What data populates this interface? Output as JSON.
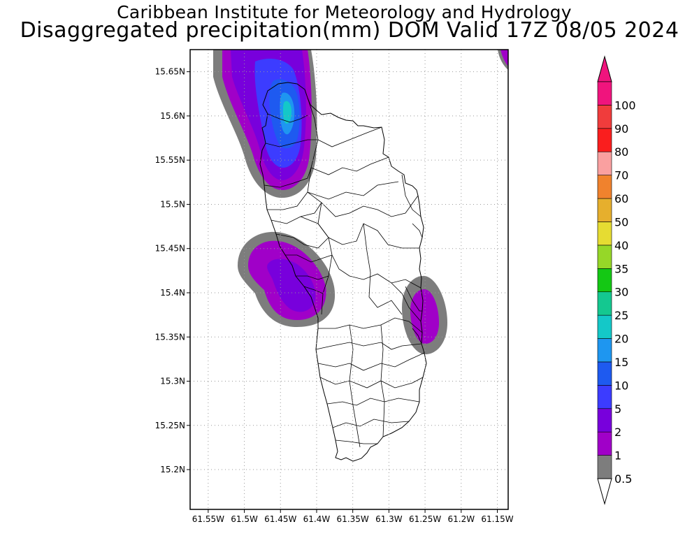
{
  "title": {
    "line1": "Caribbean Institute for Meteorology and Hydrology",
    "line2": "Disaggregated precipitation(mm) DOM Valid 17Z 08/05 2024"
  },
  "axes": {
    "lat_labels": [
      "15.65N",
      "15.6N",
      "15.55N",
      "15.5N",
      "15.45N",
      "15.4N",
      "15.35N",
      "15.3N",
      "15.25N",
      "15.2N"
    ],
    "lat_values": [
      15.65,
      15.6,
      15.55,
      15.5,
      15.45,
      15.4,
      15.35,
      15.3,
      15.25,
      15.2
    ],
    "lon_labels": [
      "61.55W",
      "61.5W",
      "61.45W",
      "61.4W",
      "61.35W",
      "61.3W",
      "61.25W",
      "61.2W",
      "61.15W"
    ],
    "lon_values": [
      -61.55,
      -61.5,
      -61.45,
      -61.4,
      -61.35,
      -61.3,
      -61.25,
      -61.2,
      -61.15
    ],
    "lat_range": [
      15.155,
      15.675
    ],
    "lon_range": [
      -61.575,
      -61.135
    ],
    "grid": true
  },
  "colorbar": {
    "unit": "mm",
    "levels": [
      "0.5",
      "1",
      "2",
      "5",
      "10",
      "15",
      "20",
      "25",
      "30",
      "35",
      "40",
      "50",
      "60",
      "70",
      "80",
      "90",
      "100"
    ],
    "colors": [
      "#7d7d7d",
      "#a000c8",
      "#7800dc",
      "#3c3cff",
      "#1e5af0",
      "#1e96f0",
      "#14c8c8",
      "#14c890",
      "#14c814",
      "#96d728",
      "#e6dc32",
      "#e6af2d",
      "#f0822d",
      "#faa0a0",
      "#fa1e1e",
      "#f03c3c",
      "#f0147d"
    ],
    "over_color": "#f0147d",
    "under_color": "#ffffff"
  },
  "map": {
    "region": "Dominica",
    "precip_areas": [
      {
        "name": "north-west",
        "max_level": "20",
        "center": [
          -61.44,
          15.6
        ]
      },
      {
        "name": "west-central",
        "max_level": "2",
        "center": [
          -61.43,
          15.41
        ]
      },
      {
        "name": "east-coast",
        "max_level": "2",
        "center": [
          -61.25,
          15.38
        ]
      },
      {
        "name": "north-east-corner",
        "max_level": "2",
        "center": [
          -61.14,
          15.67
        ]
      }
    ]
  }
}
